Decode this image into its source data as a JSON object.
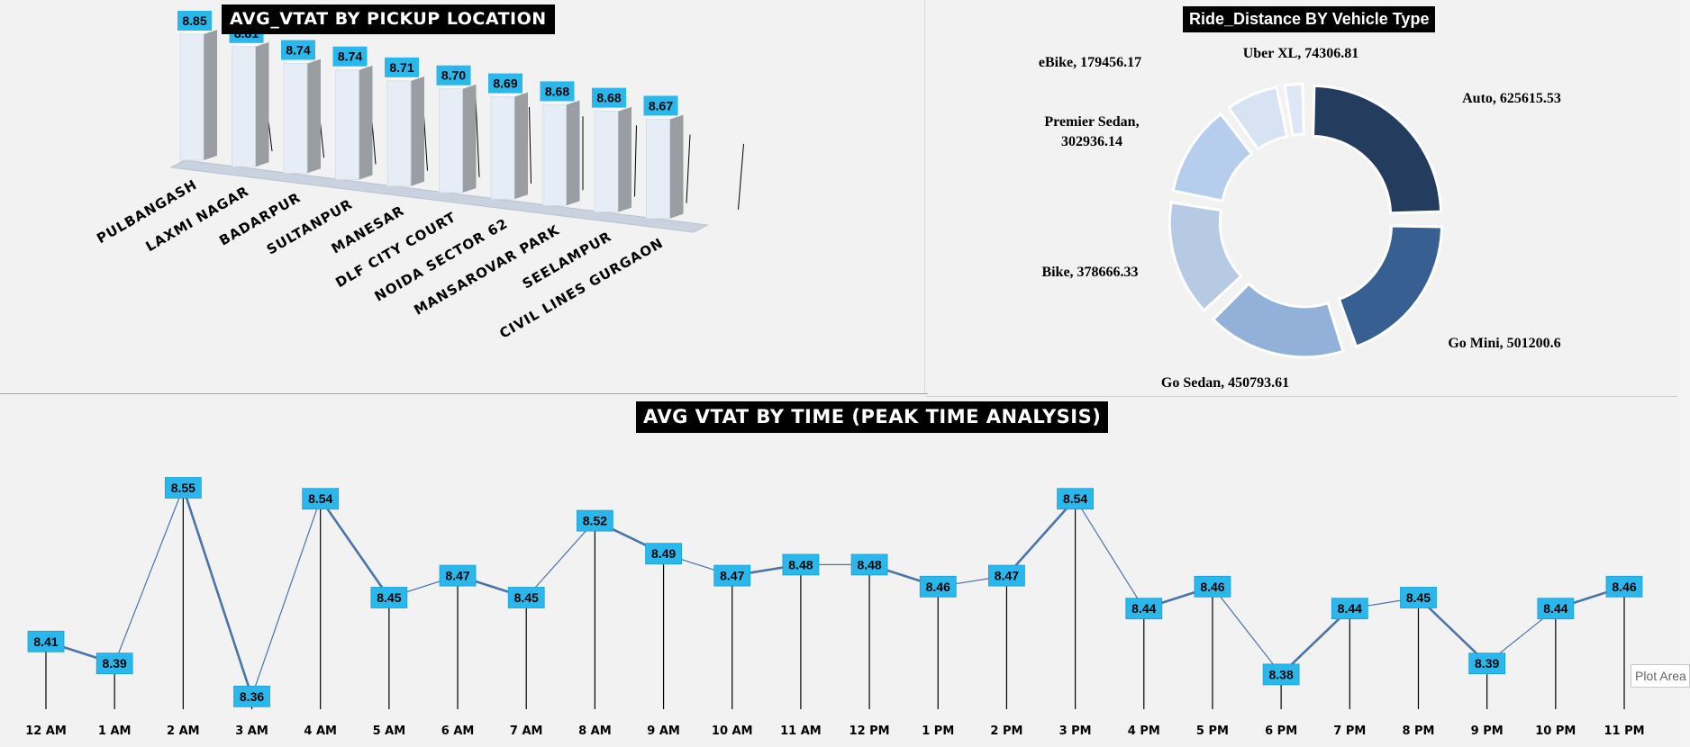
{
  "charts": {
    "bar_title": "AVG_VTAT BY PICKUP LOCATION",
    "pie_title": "Ride_Distance BY Vehicle Type",
    "line_title": "AVG VTAT BY TIME (PEAK TIME ANALYSIS)"
  },
  "tooltip": "Plot Area",
  "chart_data": [
    {
      "type": "bar",
      "title": "AVG_VTAT BY PICKUP LOCATION",
      "categories": [
        "PULBANGASH",
        "LAXMI NAGAR",
        "BADARPUR",
        "SULTANPUR",
        "MANESAR",
        "DLF CITY COURT",
        "NOIDA SECTOR 62",
        "MANSAROVAR PARK",
        "SEELAMPUR",
        "CIVIL LINES GURGAON"
      ],
      "values": [
        8.85,
        8.81,
        8.74,
        8.74,
        8.71,
        8.7,
        8.69,
        8.68,
        8.68,
        8.67
      ],
      "labels": [
        "8.85",
        "8.81",
        "8.74",
        "8.74",
        "8.71",
        "8.70",
        "8.69",
        "8.68",
        "8.68",
        "8.67"
      ],
      "style": "3d-column",
      "colors": {
        "front": "#e6edf7",
        "side": "#9a9ea3",
        "label_bg": "#29b7ec"
      }
    },
    {
      "type": "pie",
      "title": "Ride_Distance BY Vehicle Type",
      "style": "donut",
      "slices": [
        {
          "label": "Auto",
          "value": 625615.53,
          "text": "Auto, 625615.53",
          "color": "#243c5e"
        },
        {
          "label": "Go Mini",
          "value": 501200.6,
          "text": "Go Mini, 501200.6",
          "color": "#375f92"
        },
        {
          "label": "Go Sedan",
          "value": 450793.61,
          "text": "Go Sedan, 450793.61",
          "color": "#93b1d8"
        },
        {
          "label": "Bike",
          "value": 378666.33,
          "text": "Bike, 378666.33",
          "color": "#b7cae4"
        },
        {
          "label": "Premier Sedan",
          "value": 302936.14,
          "text": [
            "Premier Sedan,",
            "302936.14"
          ],
          "color": "#b6cdee"
        },
        {
          "label": "eBike",
          "value": 179456.17,
          "text": "eBike, 179456.17",
          "color": "#d7e2f2"
        },
        {
          "label": "Uber XL",
          "value": 74306.81,
          "text": "Uber XL, 74306.81",
          "color": "#dde7f5"
        }
      ]
    },
    {
      "type": "line",
      "title": "AVG VTAT BY TIME (PEAK TIME ANALYSIS)",
      "categories": [
        "12 AM",
        "1 AM",
        "2 AM",
        "3 AM",
        "4 AM",
        "5 AM",
        "6 AM",
        "7 AM",
        "8 AM",
        "9 AM",
        "10 AM",
        "11 AM",
        "12 PM",
        "1 PM",
        "2 PM",
        "3 PM",
        "4 PM",
        "5 PM",
        "6 PM",
        "7 PM",
        "8 PM",
        "9 PM",
        "10 PM",
        "11 PM"
      ],
      "values": [
        8.41,
        8.39,
        8.55,
        8.36,
        8.54,
        8.45,
        8.47,
        8.45,
        8.52,
        8.49,
        8.47,
        8.48,
        8.48,
        8.46,
        8.47,
        8.54,
        8.44,
        8.46,
        8.38,
        8.44,
        8.45,
        8.39,
        8.44,
        8.46
      ],
      "labels": [
        "8.41",
        "8.39",
        "8.55",
        "8.36",
        "8.54",
        "8.45",
        "8.47",
        "8.45",
        "8.52",
        "8.49",
        "8.47",
        "8.48",
        "8.48",
        "8.46",
        "8.47",
        "8.54",
        "8.44",
        "8.46",
        "8.38",
        "8.44",
        "8.45",
        "8.39",
        "8.44",
        "8.46"
      ],
      "colors": {
        "line": "#4a74a8",
        "label_bg": "#29b7ec",
        "drop_line": "#000000"
      }
    }
  ]
}
